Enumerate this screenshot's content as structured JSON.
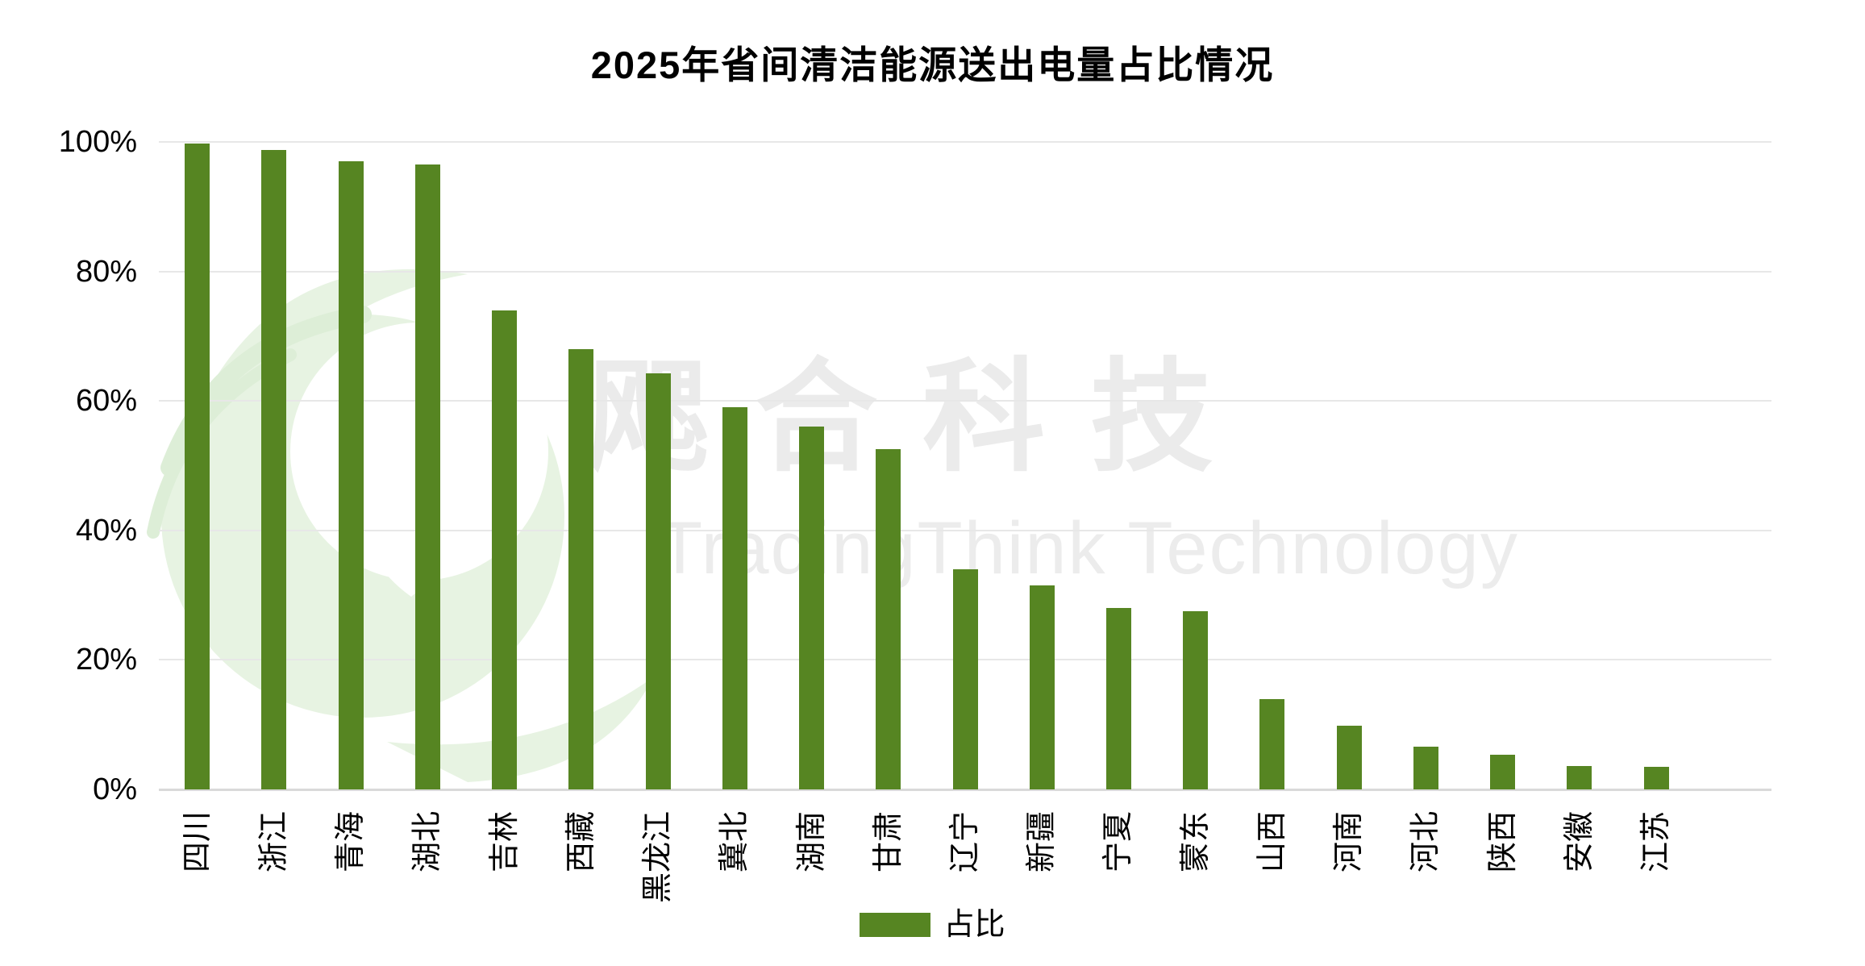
{
  "title": "2025年省间清洁能源送出电量占比情况",
  "watermark": {
    "chinese": "飔合科技",
    "english": "TradingThink Technology",
    "logo": "phoenix-swirl-logo"
  },
  "legend": {
    "label": "占比"
  },
  "colors": {
    "bar": "#568522",
    "gridline": "#e7e7e7",
    "baseline": "#d9d9d9",
    "text": "#000000",
    "watermark_text": "#ebebeb",
    "watermark_logo_fill": "#e7f3e2",
    "watermark_logo_stroke": "#ddeed7"
  },
  "y_axis": {
    "tick_labels": [
      "100%",
      "80%",
      "60%",
      "40%",
      "20%",
      "0%"
    ],
    "tick_values": [
      100,
      80,
      60,
      40,
      20,
      0
    ]
  },
  "chart_data": {
    "type": "bar",
    "title": "2025年省间清洁能源送出电量占比情况",
    "categories": [
      "四川",
      "浙江",
      "青海",
      "湖北",
      "吉林",
      "西藏",
      "黑龙江",
      "冀北",
      "湖南",
      "甘肃",
      "辽宁",
      "新疆",
      "宁夏",
      "蒙东",
      "山西",
      "河南",
      "河北",
      "陕西",
      "安徽",
      "江苏"
    ],
    "series": [
      {
        "name": "占比",
        "values": [
          99.8,
          98.8,
          97.0,
          96.5,
          74.0,
          68.0,
          64.3,
          59.0,
          56.0,
          52.5,
          34.0,
          31.5,
          28.0,
          27.5,
          14.0,
          9.8,
          6.6,
          5.4,
          3.6,
          3.5
        ]
      }
    ],
    "xlabel": "",
    "ylabel": "",
    "ylim": [
      0,
      100
    ],
    "y_tick_step": 20,
    "y_tick_format": "percent",
    "grid": "horizontal",
    "legend_position": "bottom",
    "x_tick_rotation_deg": 90,
    "bar_color": "#568522"
  }
}
